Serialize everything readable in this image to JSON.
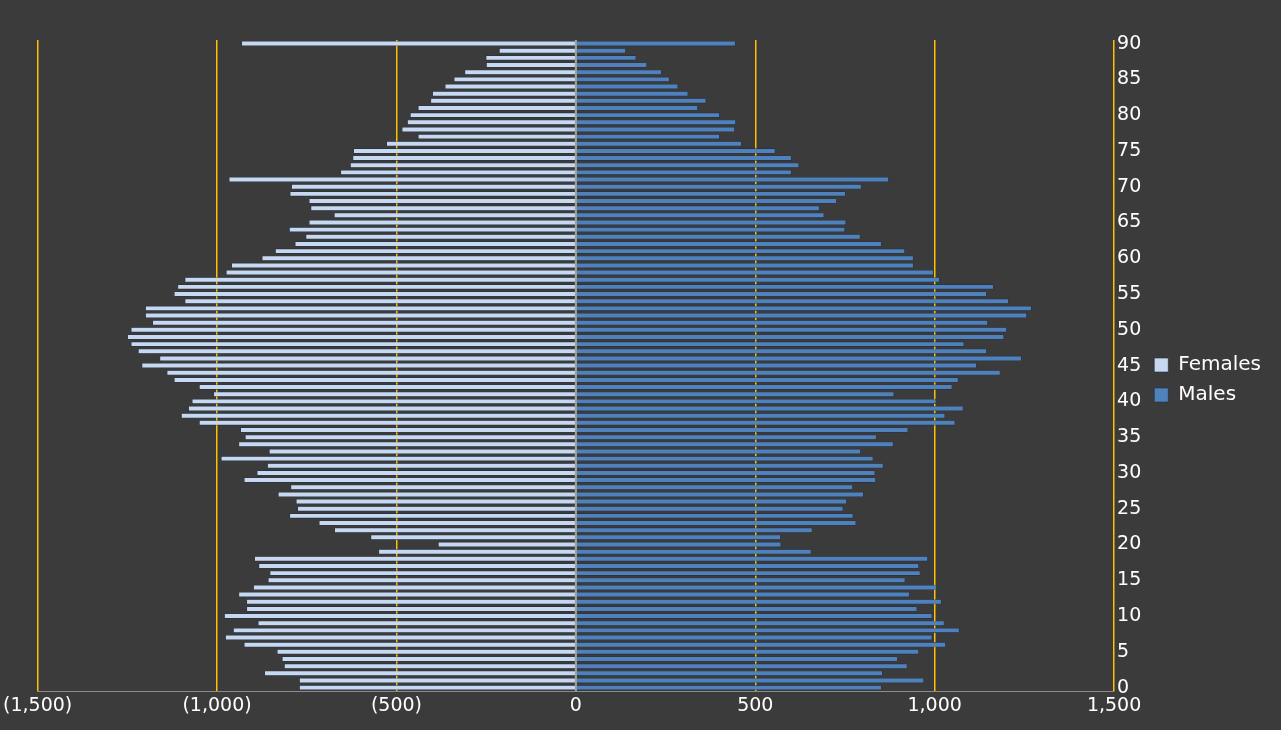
{
  "chart_data": {
    "type": "bar",
    "orientation": "horizontal",
    "stacked": true,
    "categories": [
      "90",
      null,
      null,
      null,
      null,
      "85",
      null,
      null,
      null,
      null,
      "80",
      null,
      null,
      null,
      null,
      "75",
      null,
      null,
      null,
      null,
      "70",
      null,
      null,
      null,
      null,
      "65",
      null,
      null,
      null,
      null,
      "60",
      null,
      null,
      null,
      null,
      "55",
      null,
      null,
      null,
      null,
      "50",
      null,
      null,
      null,
      null,
      "45",
      null,
      null,
      null,
      null,
      "40",
      null,
      null,
      null,
      null,
      "35",
      null,
      null,
      null,
      null,
      "30",
      null,
      null,
      null,
      null,
      "25",
      null,
      null,
      null,
      null,
      "20",
      null,
      null,
      null,
      null,
      "15",
      null,
      null,
      null,
      null,
      "10",
      null,
      null,
      null,
      null,
      "5",
      null,
      null,
      null,
      null,
      "0"
    ],
    "series": [
      {
        "name": "Females",
        "color": "#c6d9f1",
        "values": [
          -932,
          -214,
          -251,
          -250,
          -310,
          -340,
          -365,
          -400,
          -405,
          -440,
          -462,
          -470,
          -485,
          -440,
          -528,
          -620,
          -622,
          -629,
          -656,
          -967,
          -793,
          -797,
          -744,
          -739,
          -674,
          -744,
          -799,
          -753,
          -783,
          -838,
          -875,
          -960,
          -975,
          -1090,
          -1110,
          -1120,
          -1090,
          -1200,
          -1200,
          -1180,
          -1240,
          -1250,
          -1240,
          -1220,
          -1160,
          -1210,
          -1140,
          -1120,
          -1050,
          -1010,
          -1070,
          -1080,
          -1100,
          -1050,
          -935,
          -922,
          -940,
          -855,
          -989,
          -860,
          -889,
          -925,
          -795,
          -830,
          -780,
          -776,
          -798,
          -716,
          -673,
          -572,
          -384,
          -550,
          -896,
          -884,
          -853,
          -858,
          -899,
          -940,
          -918,
          -918,
          -980,
          -886,
          -955,
          -977,
          -925,
          -833,
          -819,
          -813,
          -868,
          -771,
          -771
        ]
      },
      {
        "name": "Males",
        "color": "#4f81bd",
        "values": [
          445,
          139,
          168,
          198,
          239,
          261,
          285,
          313,
          363,
          340,
          401,
          446,
          443,
          401,
          462,
          556,
          601,
          622,
          601,
          872,
          796,
          752,
          727,
          679,
          692,
          753,
          750,
          793,
          852,
          917,
          941,
          941,
          997,
          1014,
          1164,
          1145,
          1206,
          1270,
          1257,
          1148,
          1201,
          1193,
          1082,
          1145,
          1242,
          1117,
          1183,
          1066,
          1049,
          887,
          1004,
          1080,
          1029,
          1057,
          926,
          838,
          885,
          794,
          829,
          857,
          834,
          836,
          772,
          802,
          755,
          745,
          773,
          781,
          659,
          571,
          572,
          656,
          981,
          956,
          960,
          918,
          1006,
          930,
          1019,
          951,
          993,
          1027,
          1069,
          993,
          1031,
          956,
          897,
          924,
          855,
          970,
          852
        ]
      }
    ],
    "xlim": [
      -1500,
      1500
    ],
    "xticks": [
      {
        "value": -1500,
        "label": "(1,500)"
      },
      {
        "value": -1000,
        "label": "(1,000)"
      },
      {
        "value": -500,
        "label": "(500)"
      },
      0,
      500,
      {
        "value": 1000,
        "label": "1,000"
      },
      {
        "value": 1500,
        "label": "1,500"
      }
    ],
    "grid": "x",
    "legend": "right"
  }
}
